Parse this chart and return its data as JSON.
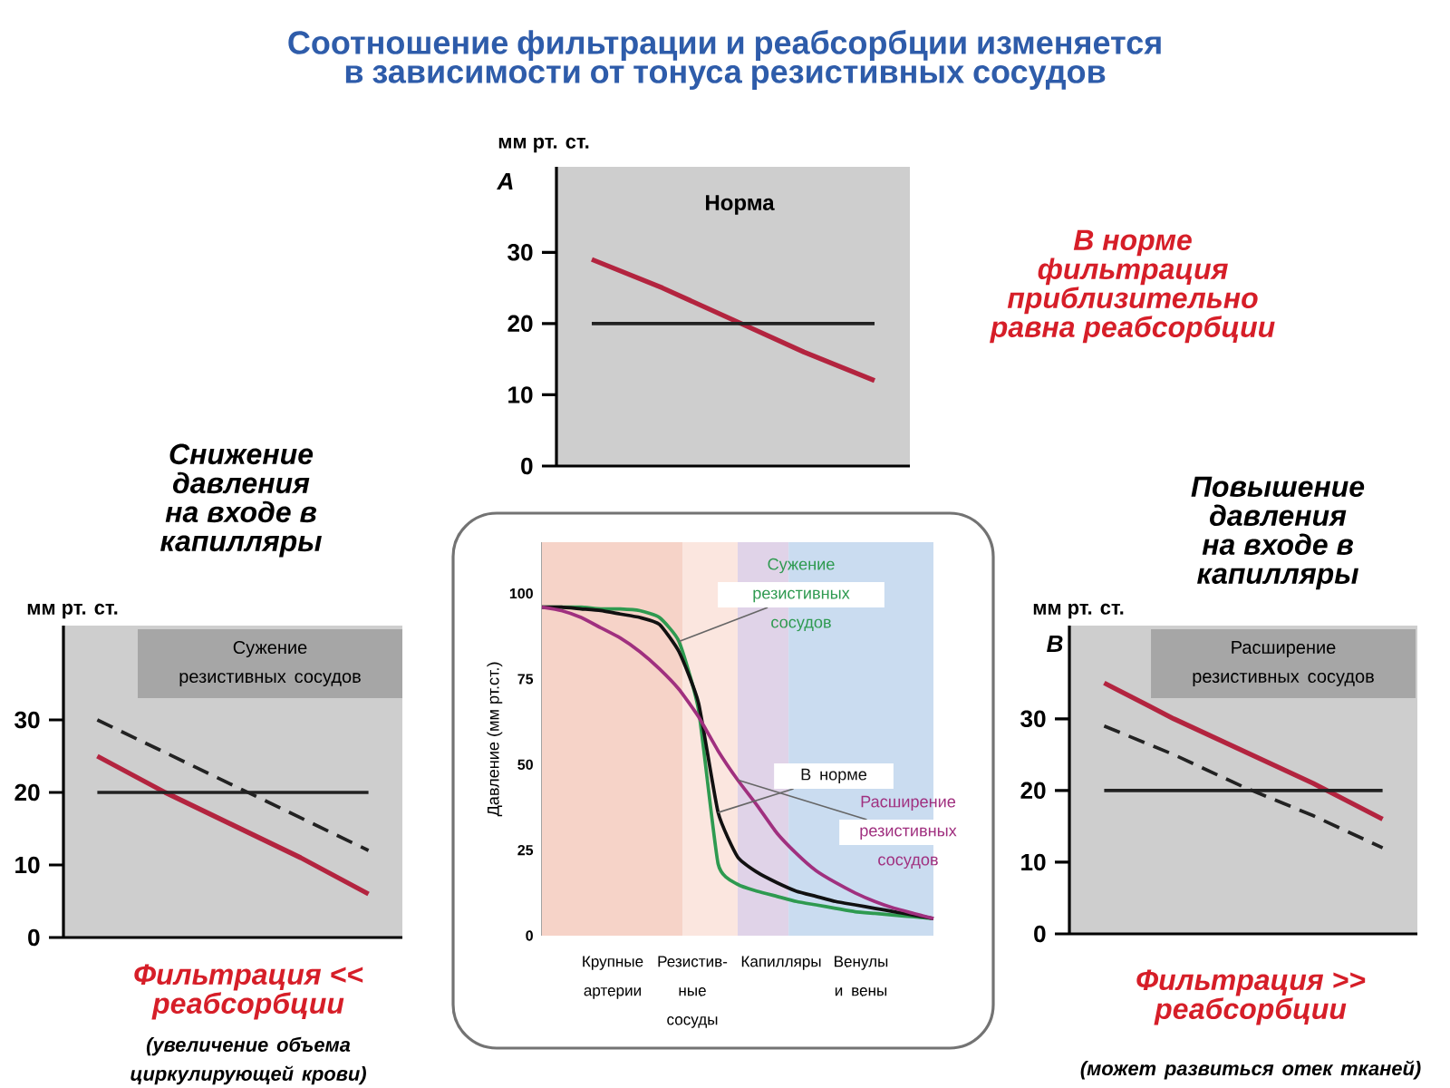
{
  "chart_data": [
    {
      "type": "other",
      "title": "Соотношение фильтрации и реабсорбции изменяется в зависимости от тонуса резистивных сосудов"
    },
    {
      "type": "line",
      "title": "Норма",
      "ylabel": "мм рт. ст.",
      "annotations": [
        "A",
        "В норме фильтрация приблизительно равна реабсорбции"
      ],
      "categories": [
        null,
        null,
        null,
        null,
        null
      ],
      "ylim": [
        0,
        42
      ],
      "yticks": [
        0,
        10,
        20,
        30
      ],
      "tick_labels": "y",
      "series": [
        {
          "color": "#b3243f",
          "values": [
            29,
            25,
            20.5,
            16,
            12
          ]
        },
        {
          "color": "#222222",
          "values": [
            20,
            20,
            20,
            20,
            20
          ]
        }
      ]
    },
    {
      "type": "line",
      "title": "Снижение давления на входе в капилляры",
      "ylabel": "мм рт. ст.",
      "annotations": [
        "Сужение резистивных сосудов",
        "Фильтрация << реабсорбции",
        "(увеличение объема циркулирующей крови)"
      ],
      "categories": [
        null,
        null,
        null,
        null,
        null
      ],
      "ylim": [
        0,
        43
      ],
      "yticks": [
        0,
        10,
        20,
        30
      ],
      "tick_labels": "y",
      "series": [
        {
          "color": "#b3243f",
          "values": [
            25,
            20,
            15.5,
            11,
            6
          ]
        },
        {
          "color": "#222222",
          "values": [
            30,
            25.5,
            21,
            16.5,
            12
          ],
          "line_style": "dashed"
        },
        {
          "color": "#222222",
          "values": [
            20,
            20,
            20,
            20,
            20
          ]
        }
      ]
    },
    {
      "type": "line",
      "title": "Повышение давления на входе в капилляры",
      "ylabel": "мм рт. ст.",
      "annotations": [
        "B",
        "Расширение резистивных сосудов",
        "Фильтрация >> реабсорбции",
        "(может развиться отек тканей)"
      ],
      "categories": [
        null,
        null,
        null,
        null,
        null
      ],
      "ylim": [
        0,
        43
      ],
      "yticks": [
        0,
        10,
        20,
        30
      ],
      "tick_labels": "y",
      "series": [
        {
          "color": "#b3243f",
          "values": [
            35,
            30,
            25.5,
            21,
            16
          ]
        },
        {
          "color": "#222222",
          "values": [
            29,
            25,
            20.5,
            16.5,
            12
          ],
          "line_style": "dashed"
        },
        {
          "color": "#222222",
          "values": [
            20,
            20,
            20,
            20,
            20
          ]
        }
      ]
    },
    {
      "type": "line",
      "ylabel": "Давление (мм рт.ст.)",
      "categories": [
        null,
        null,
        null,
        null,
        null,
        null,
        null,
        null,
        null,
        null,
        null,
        null,
        null,
        null,
        null,
        null,
        null,
        null,
        null,
        null,
        null
      ],
      "ylim": [
        0,
        115
      ],
      "yticks": [
        0,
        25,
        50,
        75,
        100
      ],
      "tick_labels": "y",
      "annotations": [
        "Крупные артерии",
        "Резистив-ные сосуды",
        "Капилляры",
        "Венулы и вены"
      ],
      "series": [
        {
          "name": "Сужение резистивных сосудов",
          "color": "#2e9a50",
          "values": [
            96,
            96,
            96,
            95.5,
            95.5,
            95,
            93,
            86,
            66,
            21,
            15,
            13,
            11.5,
            10,
            9,
            8,
            7,
            6.5,
            6,
            5.5,
            5
          ]
        },
        {
          "name": "В норме",
          "color": "#111111",
          "values": [
            96,
            96,
            95.5,
            95,
            94,
            93,
            91,
            83,
            68,
            36,
            23,
            18.5,
            15.5,
            13,
            11.5,
            10,
            9,
            8,
            7,
            6,
            5
          ]
        },
        {
          "name": "Расширение резистивных сосудов",
          "color": "#a0307f",
          "values": [
            96,
            95,
            93,
            90,
            87,
            83,
            78,
            72,
            64,
            54,
            45.5,
            38,
            30,
            24,
            19,
            15.5,
            12.5,
            10,
            8,
            6.5,
            5
          ]
        }
      ]
    }
  ]
}
